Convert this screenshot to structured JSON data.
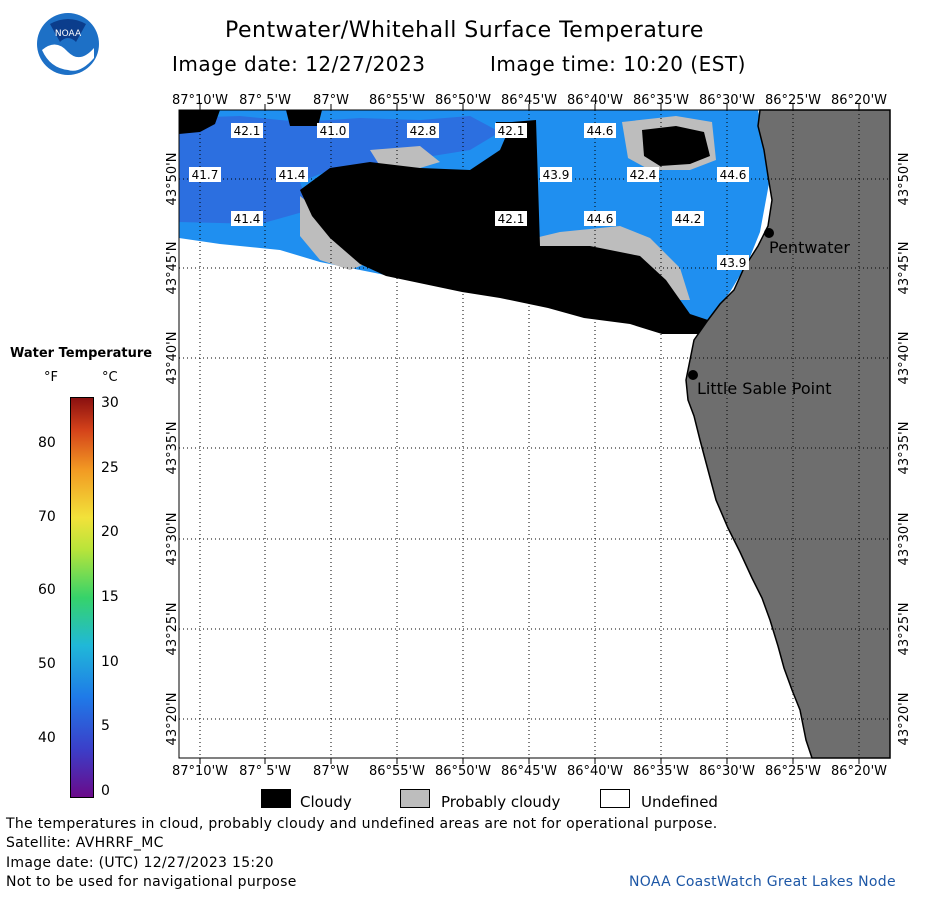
{
  "header": {
    "title": "Pentwater/Whitehall Surface Temperature",
    "image_date": "Image date: 12/27/2023",
    "image_time": "Image time: 10:20 (EST)",
    "logo_text": "NOAA"
  },
  "map": {
    "lon_labels": [
      "87°10'W",
      "87° 5'W",
      "87°W",
      "86°55'W",
      "86°50'W",
      "86°45'W",
      "86°40'W",
      "86°35'W",
      "86°30'W",
      "86°25'W",
      "86°20'W"
    ],
    "lat_labels": [
      "43°50'N",
      "43°45'N",
      "43°40'N",
      "43°35'N",
      "43°30'N",
      "43°25'N",
      "43°20'N"
    ],
    "temperature_labels_f": [
      "42.1",
      "41.0",
      "42.8",
      "42.1",
      "44.6",
      "41.7",
      "41.4",
      "43.9",
      "42.4",
      "44.6",
      "41.4",
      "42.1",
      "44.6",
      "44.2",
      "43.9"
    ],
    "places": [
      "Pentwater",
      "Little Sable Point"
    ],
    "colors": {
      "water": "#1f8ff0",
      "water_dark": "#2c6fe0",
      "land": "#6e6e6e",
      "cloudy": "#000000",
      "probably_cloudy": "#bdbdbd",
      "undefined": "#ffffff"
    }
  },
  "legend": {
    "title": "Water Temperature",
    "unit_f": "°F",
    "unit_c": "°C",
    "ticks_f": [
      "80",
      "70",
      "60",
      "50",
      "40"
    ],
    "ticks_c": [
      "30",
      "25",
      "20",
      "15",
      "10",
      "5",
      "0"
    ],
    "range_c": [
      0,
      30
    ]
  },
  "key": {
    "cloudy": "Cloudy",
    "probably_cloudy": "Probably cloudy",
    "undefined": "Undefined"
  },
  "footer": {
    "line1": "The temperatures in cloud, probably cloudy and undefined areas are not for operational purpose.",
    "line2": "Satellite: AVHRRF_MC",
    "line3": "Image date: (UTC) 12/27/2023  15:20",
    "line4": "Not to be used for navigational purpose",
    "credit": "NOAA CoastWatch Great Lakes Node"
  }
}
